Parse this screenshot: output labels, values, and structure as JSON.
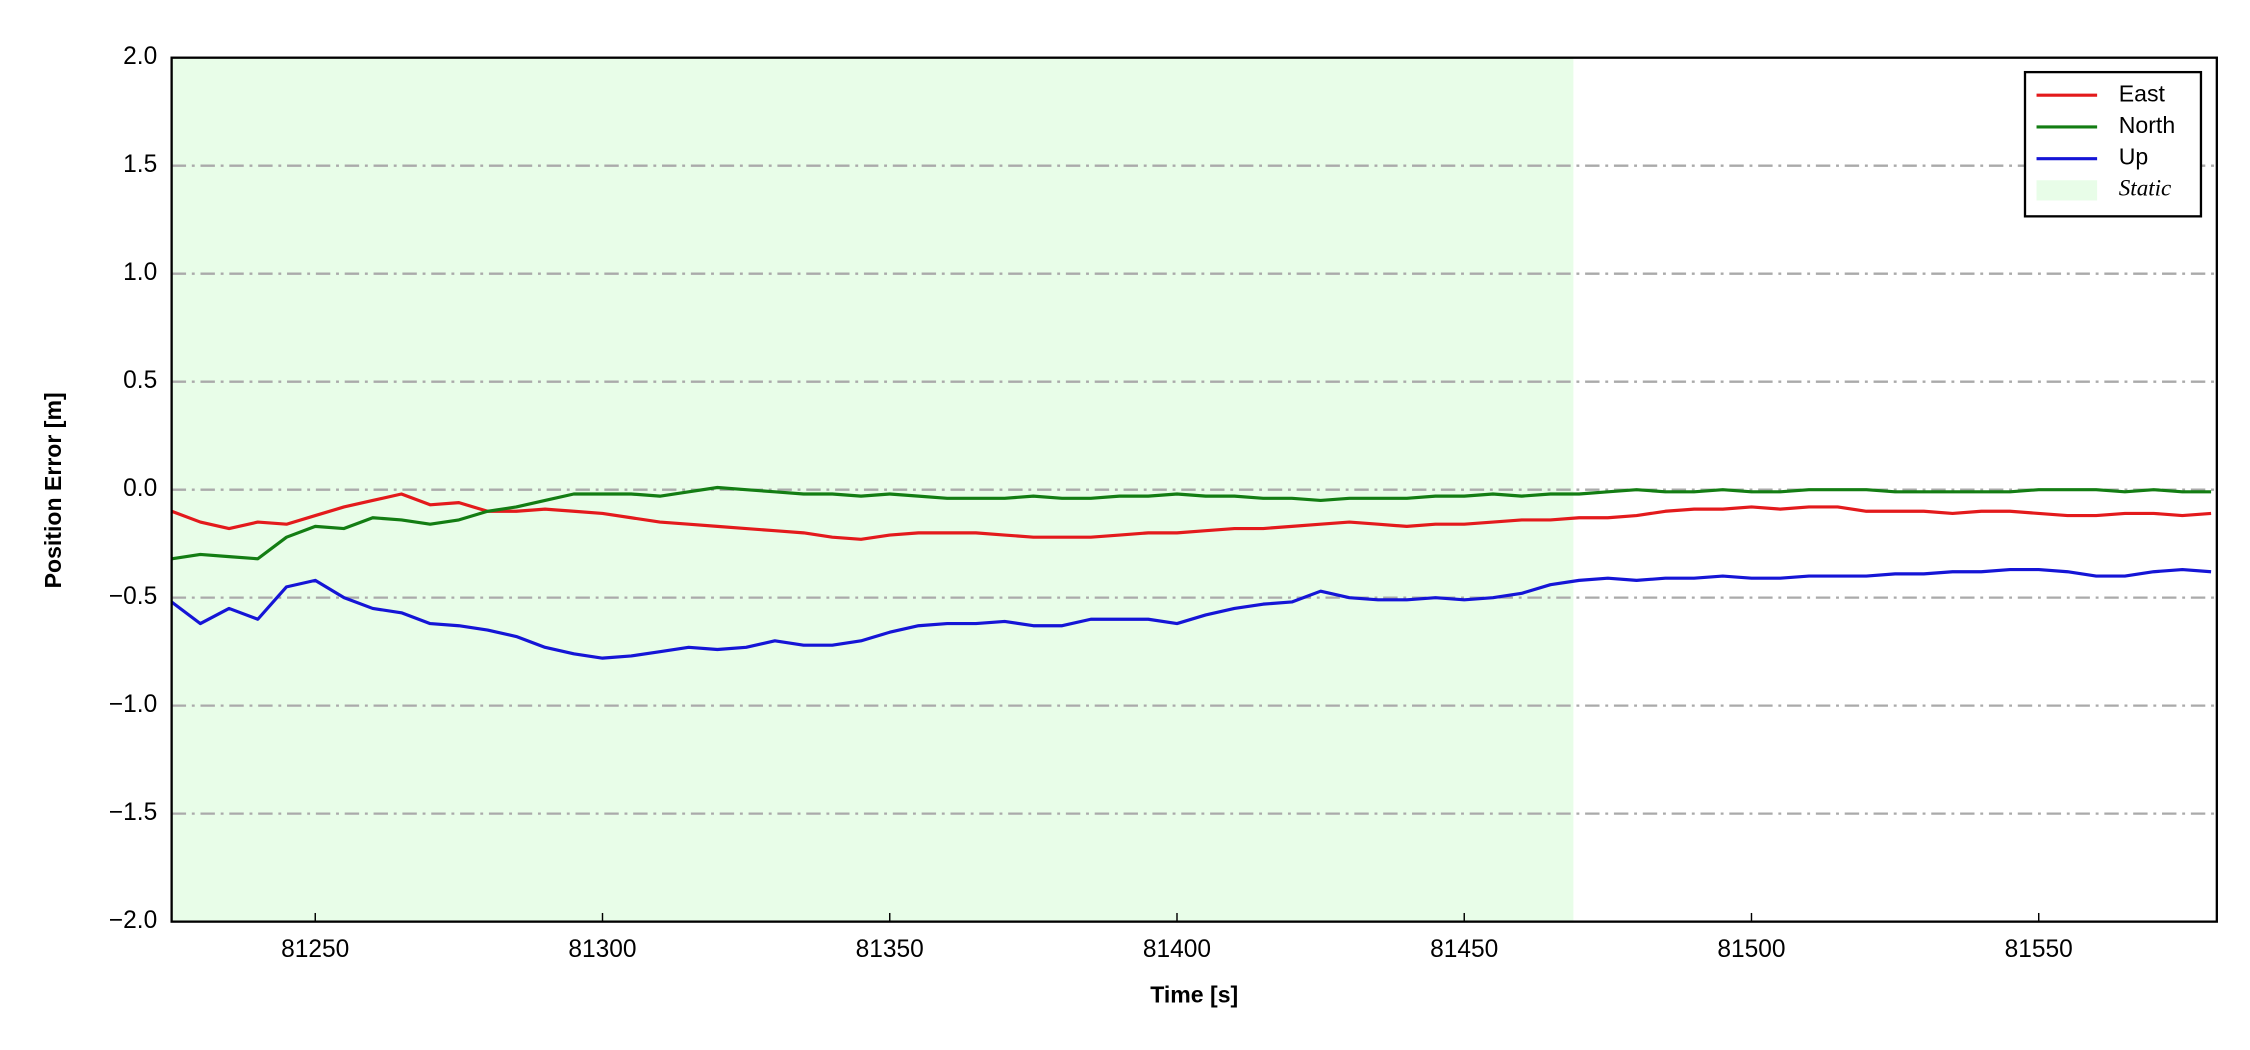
{
  "chart_data": {
    "type": "line",
    "xlabel": "Time [s]",
    "ylabel": "Position Error [m]",
    "x": [
      81225,
      81230,
      81235,
      81240,
      81245,
      81250,
      81255,
      81260,
      81265,
      81270,
      81275,
      81280,
      81285,
      81290,
      81295,
      81300,
      81305,
      81310,
      81315,
      81320,
      81325,
      81330,
      81335,
      81340,
      81345,
      81350,
      81355,
      81360,
      81365,
      81370,
      81375,
      81380,
      81385,
      81390,
      81395,
      81400,
      81405,
      81410,
      81415,
      81420,
      81425,
      81430,
      81435,
      81440,
      81445,
      81450,
      81455,
      81460,
      81465,
      81470,
      81475,
      81480,
      81485,
      81490,
      81495,
      81500,
      81505,
      81510,
      81515,
      81520,
      81525,
      81530,
      81535,
      81540,
      81545,
      81550,
      81555,
      81560,
      81565,
      81570,
      81575,
      81580
    ],
    "series": [
      {
        "name": "East",
        "color": "#e31a1c",
        "values": [
          -0.1,
          -0.15,
          -0.18,
          -0.15,
          -0.16,
          -0.12,
          -0.08,
          -0.05,
          -0.02,
          -0.07,
          -0.06,
          -0.1,
          -0.1,
          -0.09,
          -0.1,
          -0.11,
          -0.13,
          -0.15,
          -0.16,
          -0.17,
          -0.18,
          -0.19,
          -0.2,
          -0.22,
          -0.23,
          -0.21,
          -0.2,
          -0.2,
          -0.2,
          -0.21,
          -0.22,
          -0.22,
          -0.22,
          -0.21,
          -0.2,
          -0.2,
          -0.19,
          -0.18,
          -0.18,
          -0.17,
          -0.16,
          -0.15,
          -0.16,
          -0.17,
          -0.16,
          -0.16,
          -0.15,
          -0.14,
          -0.14,
          -0.13,
          -0.13,
          -0.12,
          -0.1,
          -0.09,
          -0.09,
          -0.08,
          -0.09,
          -0.08,
          -0.08,
          -0.1,
          -0.1,
          -0.1,
          -0.11,
          -0.1,
          -0.1,
          -0.11,
          -0.12,
          -0.12,
          -0.11,
          -0.11,
          -0.12,
          -0.11
        ]
      },
      {
        "name": "North",
        "color": "#137d13",
        "values": [
          -0.32,
          -0.3,
          -0.31,
          -0.32,
          -0.22,
          -0.17,
          -0.18,
          -0.13,
          -0.14,
          -0.16,
          -0.14,
          -0.1,
          -0.08,
          -0.05,
          -0.02,
          -0.02,
          -0.02,
          -0.03,
          -0.01,
          0.01,
          0.0,
          -0.01,
          -0.02,
          -0.02,
          -0.03,
          -0.02,
          -0.03,
          -0.04,
          -0.04,
          -0.04,
          -0.03,
          -0.04,
          -0.04,
          -0.03,
          -0.03,
          -0.02,
          -0.03,
          -0.03,
          -0.04,
          -0.04,
          -0.05,
          -0.04,
          -0.04,
          -0.04,
          -0.03,
          -0.03,
          -0.02,
          -0.03,
          -0.02,
          -0.02,
          -0.01,
          0.0,
          -0.01,
          -0.01,
          0.0,
          -0.01,
          -0.01,
          0.0,
          0.0,
          0.0,
          -0.01,
          -0.01,
          -0.01,
          -0.01,
          -0.01,
          0.0,
          0.0,
          0.0,
          -0.01,
          0.0,
          -0.01,
          -0.01
        ]
      },
      {
        "name": "Up",
        "color": "#1515d6",
        "values": [
          -0.52,
          -0.62,
          -0.55,
          -0.6,
          -0.45,
          -0.42,
          -0.5,
          -0.55,
          -0.57,
          -0.62,
          -0.63,
          -0.65,
          -0.68,
          -0.73,
          -0.76,
          -0.78,
          -0.77,
          -0.75,
          -0.73,
          -0.74,
          -0.73,
          -0.7,
          -0.72,
          -0.72,
          -0.7,
          -0.66,
          -0.63,
          -0.62,
          -0.62,
          -0.61,
          -0.63,
          -0.63,
          -0.6,
          -0.6,
          -0.6,
          -0.62,
          -0.58,
          -0.55,
          -0.53,
          -0.52,
          -0.47,
          -0.5,
          -0.51,
          -0.51,
          -0.5,
          -0.51,
          -0.5,
          -0.48,
          -0.44,
          -0.42,
          -0.41,
          -0.42,
          -0.41,
          -0.41,
          -0.4,
          -0.41,
          -0.41,
          -0.4,
          -0.4,
          -0.4,
          -0.39,
          -0.39,
          -0.38,
          -0.38,
          -0.37,
          -0.37,
          -0.38,
          -0.4,
          -0.4,
          -0.38,
          -0.37,
          -0.38
        ]
      }
    ],
    "shaded_region": {
      "name": "Static",
      "xmin": 81225,
      "xmax": 81469,
      "color": "#e8fde8"
    },
    "xlim": [
      81225,
      81581
    ],
    "ylim": [
      -2.0,
      2.0
    ],
    "xticks": [
      81250,
      81300,
      81350,
      81400,
      81450,
      81500,
      81550
    ],
    "yticks": [
      {
        "value": -2.0,
        "label": "−2.0"
      },
      {
        "value": -1.5,
        "label": "−1.5"
      },
      {
        "value": -1.0,
        "label": "−1.0"
      },
      {
        "value": -0.5,
        "label": "−0.5"
      },
      {
        "value": 0.0,
        "label": "0.0"
      },
      {
        "value": 0.5,
        "label": "0.5"
      },
      {
        "value": 1.0,
        "label": "1.0"
      },
      {
        "value": 1.5,
        "label": "1.5"
      },
      {
        "value": 2.0,
        "label": "2.0"
      }
    ],
    "grid": true,
    "legend": "upper right"
  }
}
